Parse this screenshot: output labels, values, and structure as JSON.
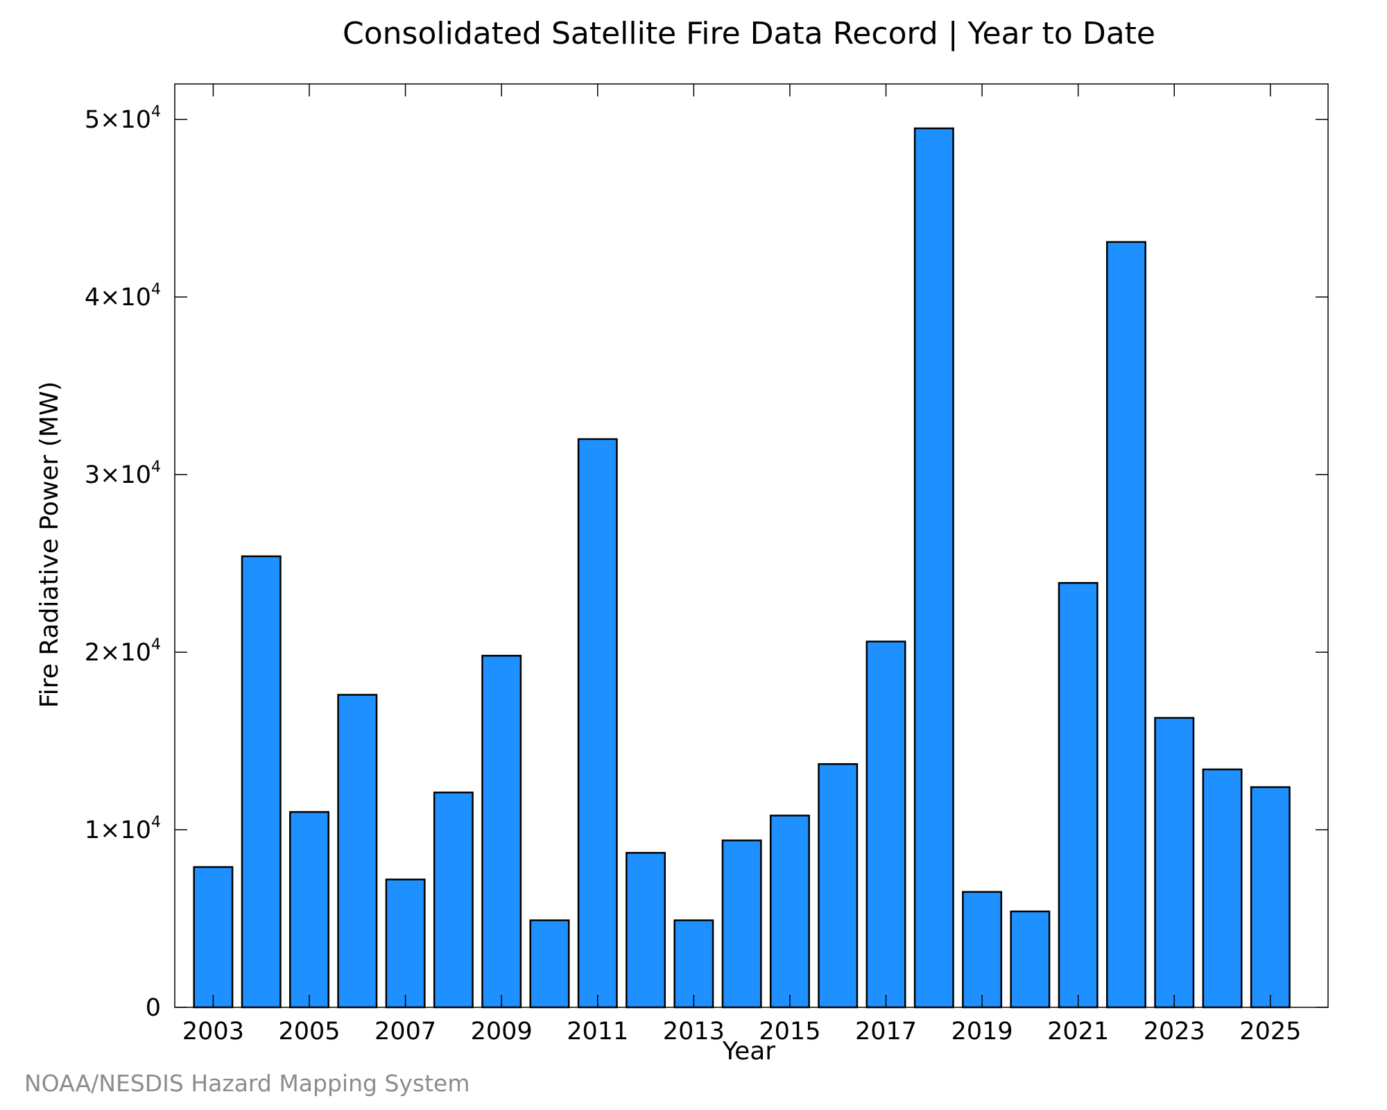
{
  "chart_data": {
    "type": "bar",
    "title": "Consolidated Satellite Fire Data Record | Year to Date",
    "xlabel": "Year",
    "ylabel": "Fire Radiative Power (MW)",
    "credit": "NOAA/NESDIS Hazard Mapping System",
    "categories": [
      2003,
      2004,
      2005,
      2006,
      2007,
      2008,
      2009,
      2010,
      2011,
      2012,
      2013,
      2014,
      2015,
      2016,
      2017,
      2018,
      2019,
      2020,
      2021,
      2022,
      2023,
      2024,
      2025
    ],
    "values": [
      7900,
      25400,
      11000,
      17600,
      7200,
      12100,
      19800,
      4900,
      32000,
      8700,
      4900,
      9400,
      10800,
      13700,
      20600,
      49500,
      6500,
      5400,
      23900,
      43100,
      16300,
      13400,
      12400
    ],
    "xlim": [
      2002.2,
      2026.2
    ],
    "ylim": [
      0,
      52000
    ],
    "x_ticks": [
      {
        "value": 2003,
        "label": "2003"
      },
      {
        "value": 2005,
        "label": "2005"
      },
      {
        "value": 2007,
        "label": "2007"
      },
      {
        "value": 2009,
        "label": "2009"
      },
      {
        "value": 2011,
        "label": "2011"
      },
      {
        "value": 2013,
        "label": "2013"
      },
      {
        "value": 2015,
        "label": "2015"
      },
      {
        "value": 2017,
        "label": "2017"
      },
      {
        "value": 2019,
        "label": "2019"
      },
      {
        "value": 2021,
        "label": "2021"
      },
      {
        "value": 2023,
        "label": "2023"
      },
      {
        "value": 2025,
        "label": "2025"
      }
    ],
    "y_ticks": [
      {
        "value": 0,
        "label": "0",
        "exponent": ""
      },
      {
        "value": 10000,
        "label": "1×10",
        "exponent": "4"
      },
      {
        "value": 20000,
        "label": "2×10",
        "exponent": "4"
      },
      {
        "value": 30000,
        "label": "3×10",
        "exponent": "4"
      },
      {
        "value": 40000,
        "label": "4×10",
        "exponent": "4"
      },
      {
        "value": 50000,
        "label": "5×10",
        "exponent": "4"
      }
    ],
    "grid": false,
    "bar_color": "#1e90ff",
    "bar_edge_color": "#000000"
  }
}
